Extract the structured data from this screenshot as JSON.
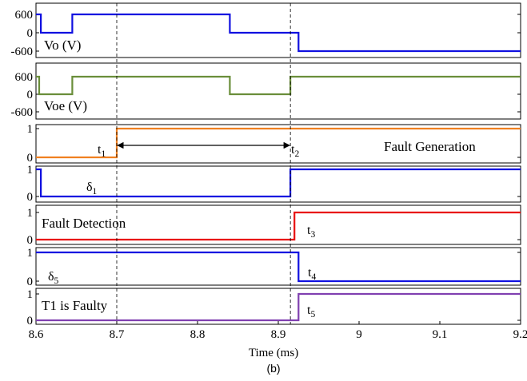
{
  "chart_data": {
    "type": "line",
    "caption": "(b)",
    "xlabel": "Time (ms)",
    "xlim": [
      8.6,
      9.2
    ],
    "xticks": [
      8.6,
      8.7,
      8.8,
      8.9,
      9,
      9.1,
      9.2
    ],
    "xtick_labels": [
      "8.6",
      "8.7",
      "8.8",
      "8.9",
      "9",
      "9.1",
      "9.2"
    ],
    "markers": [
      {
        "x": 8.7,
        "label_main": "t",
        "label_sub": "1"
      },
      {
        "x": 8.915,
        "label_main": "t",
        "label_sub": "2"
      }
    ],
    "arrow": {
      "from": 8.7,
      "to": 8.915
    },
    "panels": [
      {
        "id": "vo",
        "ylabel": "Vo (V)",
        "ylim": [
          -750,
          750
        ],
        "yticks": [
          600,
          0,
          -600
        ],
        "ytick_labels": [
          "600",
          "0",
          "-600"
        ],
        "color": "#1010e0",
        "series": {
          "x": [
            8.6,
            8.606,
            8.606,
            8.645,
            8.645,
            8.84,
            8.84,
            8.925,
            8.925,
            9.2
          ],
          "y": [
            600,
            600,
            0,
            0,
            600,
            600,
            0,
            0,
            -600,
            -600
          ]
        },
        "annotations": []
      },
      {
        "id": "voe",
        "ylabel": "Voe (V)",
        "ylim": [
          -750,
          750
        ],
        "yticks": [
          600,
          0,
          -600
        ],
        "ytick_labels": [
          "600",
          "0",
          "-600"
        ],
        "color": "#6a8e3a",
        "series": {
          "x": [
            8.6,
            8.604,
            8.604,
            8.645,
            8.645,
            8.84,
            8.84,
            8.915,
            8.915,
            9.2
          ],
          "y": [
            600,
            600,
            0,
            0,
            600,
            600,
            0,
            0,
            600,
            600
          ]
        },
        "annotations": []
      },
      {
        "id": "fault-generation",
        "ylabel": "",
        "ylim": [
          0,
          1
        ],
        "yticks": [
          1,
          0
        ],
        "ytick_labels": [
          "1",
          "0"
        ],
        "color": "#f08020",
        "series": {
          "x": [
            8.6,
            8.7,
            8.7,
            9.2
          ],
          "y": [
            0,
            0,
            1,
            1
          ]
        },
        "annotations": [
          {
            "main": "Fault Generation",
            "sub": ""
          }
        ]
      },
      {
        "id": "delta1",
        "ylabel": "",
        "ylim": [
          0,
          1
        ],
        "yticks": [
          1,
          0
        ],
        "ytick_labels": [
          "1",
          "0"
        ],
        "color": "#1010e0",
        "series": {
          "x": [
            8.6,
            8.606,
            8.606,
            8.915,
            8.915,
            9.2
          ],
          "y": [
            1,
            1,
            0,
            0,
            1,
            1
          ]
        },
        "annotations": [
          {
            "main": "δ",
            "sub": "1"
          }
        ]
      },
      {
        "id": "fault-detection",
        "ylabel": "",
        "ylim": [
          0,
          1
        ],
        "yticks": [
          1,
          0
        ],
        "ytick_labels": [
          "1",
          "0"
        ],
        "color": "#e81010",
        "series": {
          "x": [
            8.6,
            8.92,
            8.92,
            9.2
          ],
          "y": [
            0,
            0,
            1,
            1
          ]
        },
        "annotations": [
          {
            "main": "Fault Detection",
            "sub": ""
          },
          {
            "main": "t",
            "sub": "3"
          }
        ]
      },
      {
        "id": "delta5",
        "ylabel": "",
        "ylim": [
          0,
          1
        ],
        "yticks": [
          1,
          0
        ],
        "ytick_labels": [
          "1",
          "0"
        ],
        "color": "#1010e0",
        "series": {
          "x": [
            8.6,
            8.925,
            8.925,
            9.2
          ],
          "y": [
            1,
            1,
            0,
            0
          ]
        },
        "annotations": [
          {
            "main": "δ",
            "sub": "5"
          },
          {
            "main": "t",
            "sub": "4"
          }
        ]
      },
      {
        "id": "t1-faulty",
        "ylabel": "",
        "ylim": [
          0,
          1
        ],
        "yticks": [
          1,
          0
        ],
        "ytick_labels": [
          "1",
          "0"
        ],
        "color": "#8040b0",
        "series": {
          "x": [
            8.6,
            8.925,
            8.925,
            9.2
          ],
          "y": [
            0,
            0,
            1,
            1
          ]
        },
        "annotations": [
          {
            "main": "T1 is Faulty",
            "sub": ""
          },
          {
            "main": "t",
            "sub": "5"
          }
        ]
      }
    ]
  }
}
